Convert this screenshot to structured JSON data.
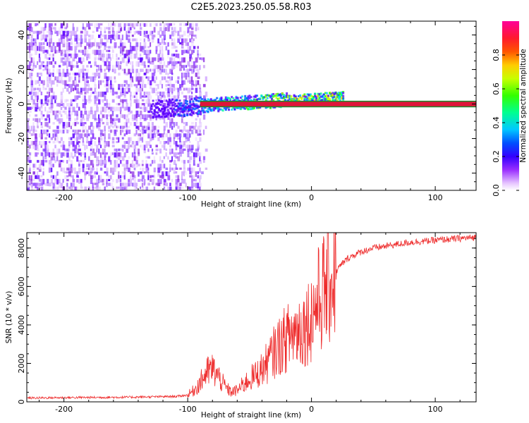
{
  "figure_title": "C2E5.2023.250.05.58.R03",
  "colors": {
    "snr_line": "#ee2a2a",
    "band_fill": "#e0153a",
    "band_edge": "#1d8a2c",
    "colormap": [
      "#ffffff",
      "#d9a8ff",
      "#8a2be2",
      "#4b00ff",
      "#0000ff",
      "#00c8ff",
      "#00ff80",
      "#33ff00",
      "#c8ff00",
      "#ffd000",
      "#ff6600",
      "#ff1a1a",
      "#ff0066",
      "#ff0099"
    ]
  },
  "chart_data": [
    {
      "type": "heatmap",
      "title": "C2E5.2023.250.05.58.R03",
      "xlabel": "Height of straight line (km)",
      "ylabel": "Frequency (Hz)",
      "xlim": [
        -230,
        133
      ],
      "ylim": [
        -50,
        48
      ],
      "xticks": [
        -200,
        -100,
        0,
        100
      ],
      "xtick_labels": [
        "-200",
        "-100",
        "0",
        "100"
      ],
      "yticks": [
        -40,
        -20,
        0,
        20,
        40
      ],
      "ytick_labels": [
        "-40",
        "-20",
        "0",
        "20",
        "40"
      ],
      "noise_region_x": [
        -230,
        -90
      ],
      "signal_band": {
        "x_start": -90,
        "x_end": 133,
        "center_hz": 0,
        "half_width_hz": 1.5
      },
      "colorbar": {
        "label": "Normalized spectral amplitude",
        "range": [
          0,
          1
        ],
        "ticks": [
          0.0,
          0.2,
          0.4,
          0.6,
          0.8
        ],
        "tick_labels": [
          "0.0",
          "0.2",
          "0.4",
          "0.6",
          "0.8"
        ]
      }
    },
    {
      "type": "line",
      "xlabel": "Height of straight line (km)",
      "ylabel": "SNR (10 * v/v)",
      "xlim": [
        -230,
        133
      ],
      "ylim": [
        0,
        8800
      ],
      "xticks": [
        -200,
        -100,
        0,
        100
      ],
      "xtick_labels": [
        "-200",
        "-100",
        "0",
        "100"
      ],
      "yticks": [
        0,
        2000,
        4000,
        6000,
        8000
      ],
      "ytick_labels": [
        "0",
        "2000",
        "4000",
        "6000",
        "8000"
      ],
      "series": [
        {
          "name": "SNR",
          "x": [
            -230,
            -200,
            -150,
            -110,
            -100,
            -95,
            -90,
            -85,
            -80,
            -75,
            -70,
            -65,
            -60,
            -55,
            -50,
            -45,
            -40,
            -35,
            -30,
            -25,
            -20,
            -15,
            -10,
            -5,
            0,
            5,
            10,
            15,
            20,
            25,
            30,
            40,
            50,
            60,
            70,
            80,
            90,
            100,
            110,
            120,
            133
          ],
          "y": [
            200,
            220,
            240,
            280,
            350,
            600,
            1000,
            1500,
            1700,
            1300,
            800,
            500,
            600,
            900,
            1200,
            1400,
            1700,
            2100,
            2600,
            3000,
            3300,
            3600,
            3800,
            4000,
            4500,
            5200,
            5800,
            6300,
            6800,
            7200,
            7500,
            7800,
            8000,
            8100,
            8200,
            8300,
            8350,
            8400,
            8450,
            8500,
            8550
          ]
        }
      ]
    }
  ]
}
